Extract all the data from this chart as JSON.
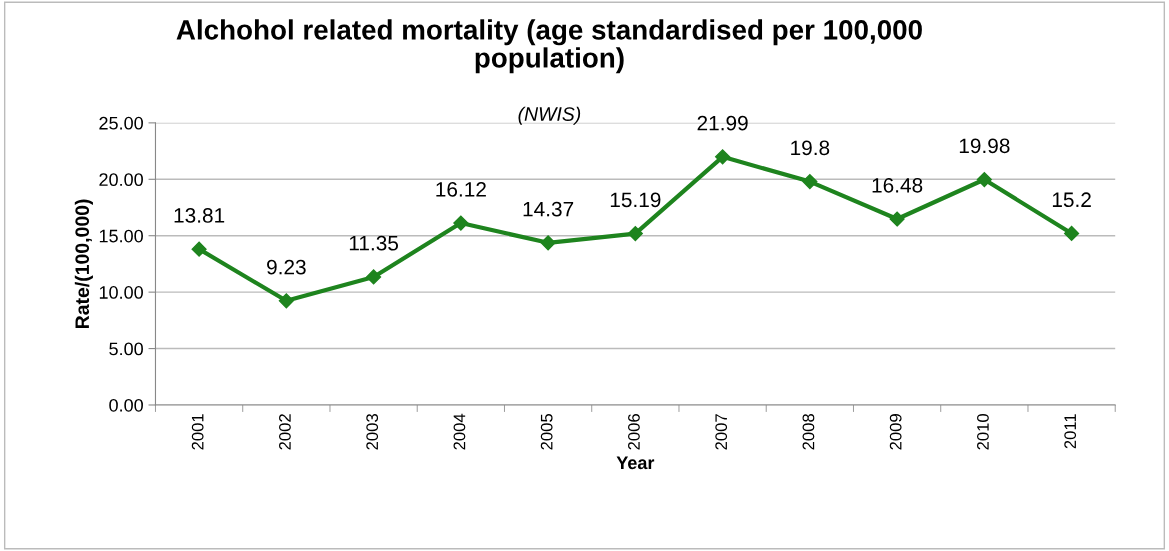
{
  "chart_data": {
    "type": "line",
    "title": "Alchohol related mortality (age standardised per 100,000\npopulation)",
    "subtitle": "(NWIS)",
    "xlabel": "Year",
    "ylabel": "Rate/(100,000)",
    "categories": [
      "2001",
      "2002",
      "2003",
      "2004",
      "2005",
      "2006",
      "2007",
      "2008",
      "2009",
      "2010",
      "2011"
    ],
    "series": [
      {
        "color": "#1e841e",
        "values": [
          13.81,
          9.23,
          11.35,
          16.12,
          14.37,
          15.19,
          21.99,
          19.8,
          16.48,
          19.98,
          15.2
        ]
      }
    ],
    "ylim": [
      0,
      25
    ],
    "yticks": [
      {
        "value": 0,
        "label": "0.00"
      },
      {
        "value": 5,
        "label": "5.00"
      },
      {
        "value": 10,
        "label": "10.00"
      },
      {
        "value": 15,
        "label": "15.00"
      },
      {
        "value": 20,
        "label": "20.00"
      },
      {
        "value": 25,
        "label": "25.00"
      }
    ],
    "grid": "y",
    "marker": "diamond",
    "line_style": "solid",
    "data_labels": true,
    "legend": false
  }
}
